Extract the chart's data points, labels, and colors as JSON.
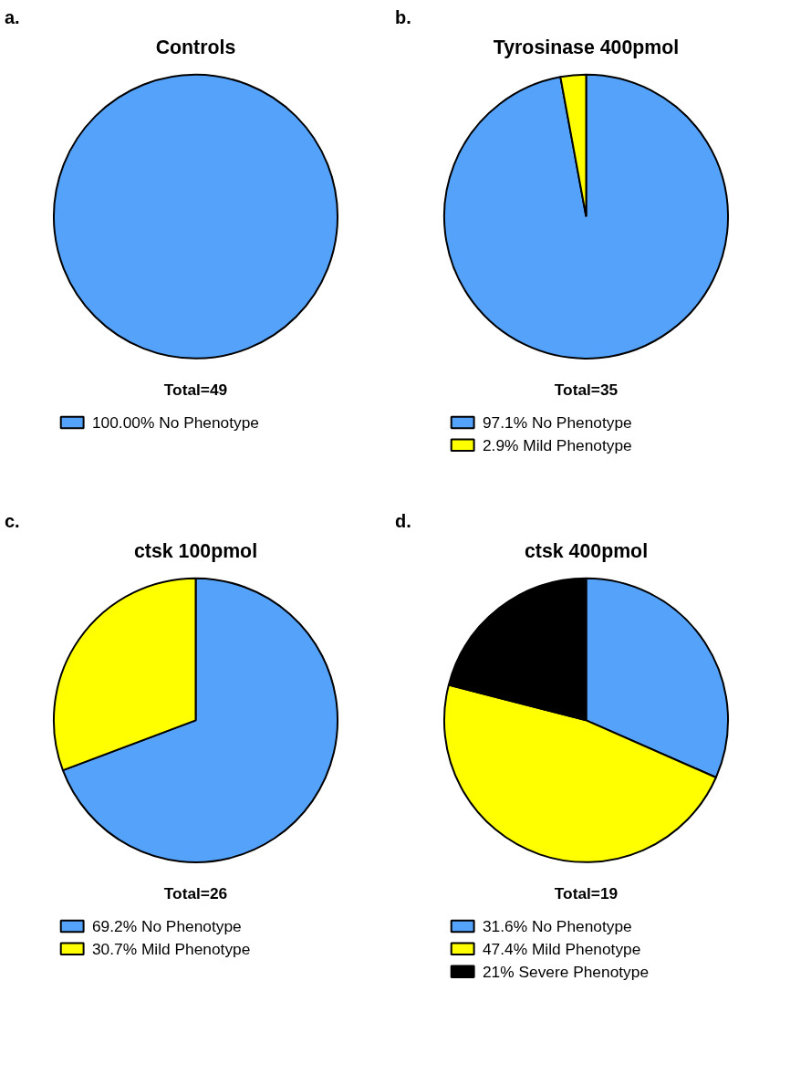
{
  "chart_data": [
    {
      "type": "pie",
      "title": "Controls",
      "categories": [
        "No Phenotype"
      ],
      "values": [
        100
      ],
      "value_labels": [
        "100.00%"
      ],
      "colors": [
        "#55a2fa"
      ],
      "annotations": [
        "a.",
        "Total=49"
      ],
      "legend": "bottom"
    },
    {
      "type": "pie",
      "title": "Tyrosinase 400pmol",
      "categories": [
        "No Phenotype",
        "Mild Phenotype"
      ],
      "values": [
        97.1,
        2.9
      ],
      "value_labels": [
        "97.1%",
        "2.9%"
      ],
      "colors": [
        "#55a2fa",
        "#ffff00"
      ],
      "annotations": [
        "b.",
        "Total=35"
      ],
      "legend": "bottom"
    },
    {
      "type": "pie",
      "title": "ctsk 100pmol",
      "categories": [
        "No Phenotype",
        "Mild Phenotype"
      ],
      "values": [
        69.2,
        30.7
      ],
      "value_labels": [
        "69.2%",
        "30.7%"
      ],
      "colors": [
        "#55a2fa",
        "#ffff00"
      ],
      "annotations": [
        "c.",
        "Total=26"
      ],
      "legend": "bottom"
    },
    {
      "type": "pie",
      "title": "ctsk 400pmol",
      "categories": [
        "No Phenotype",
        "Mild Phenotype",
        "Severe Phenotype"
      ],
      "values": [
        31.6,
        47.4,
        21
      ],
      "value_labels": [
        "31.6%",
        "47.4%",
        "21%"
      ],
      "colors": [
        "#55a2fa",
        "#ffff00",
        "#000000"
      ],
      "annotations": [
        "d.",
        "Total=19"
      ],
      "legend": "bottom"
    }
  ]
}
